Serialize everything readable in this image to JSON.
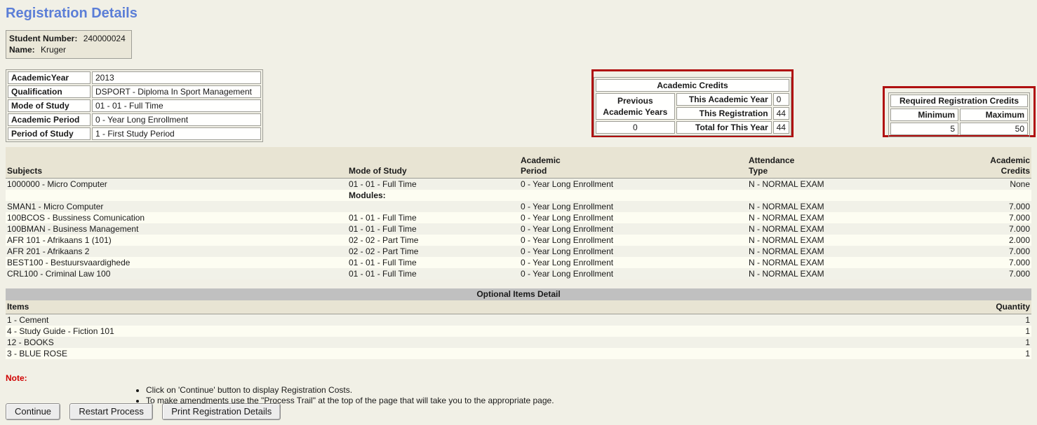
{
  "page": {
    "title": "Registration Details"
  },
  "colors": {
    "accent_title_blue": "#5b7ed7",
    "highlight_border_red": "#b01010",
    "note_red": "#d00000",
    "header_beige": "#e8e4d3",
    "optional_bar_gray": "#c0c0c0"
  },
  "student": {
    "number_label": "Student Number:",
    "number_value": "240000024",
    "name_label": "Name:",
    "name_value": "Kruger"
  },
  "info": {
    "rows": [
      {
        "label": "AcademicYear",
        "value": "2013"
      },
      {
        "label": "Qualification",
        "value": "DSPORT - Diploma In Sport Management"
      },
      {
        "label": "Mode of Study",
        "value": "01 - 01 - Full Time"
      },
      {
        "label": "Academic Period",
        "value": "0 - Year Long Enrollment"
      },
      {
        "label": "Period of Study",
        "value": "1 - First Study Period"
      }
    ]
  },
  "academic_credits": {
    "title": "Academic Credits",
    "previous_label": "Previous Academic Years",
    "previous_value": "0",
    "this_year_label": "This Academic Year",
    "this_year_value": "0",
    "this_registration_label": "This Registration",
    "this_registration_value": "44",
    "total_label": "Total for This Year",
    "total_value": "44"
  },
  "required_credits": {
    "title": "Required Registration Credits",
    "min_label": "Minimum",
    "max_label": "Maximum",
    "min_value": "5",
    "max_value": "50"
  },
  "subjects": {
    "headers": [
      "Subjects",
      "Mode of Study",
      "Academic\nPeriod",
      "Attendance\nType",
      "Academic\nCredits"
    ],
    "rows": [
      {
        "subject": "1000000 - Micro Computer",
        "mode": "01 - 01 - Full Time",
        "period": "0 - Year Long Enrollment",
        "attendance": "N - NORMAL EXAM",
        "credits": "None",
        "modules_row": false
      },
      {
        "subject": "",
        "mode": "Modules:",
        "period": "",
        "attendance": "",
        "credits": "",
        "modules_row": true
      },
      {
        "subject": "SMAN1 - Micro Computer",
        "mode": "",
        "period": "0 - Year Long Enrollment",
        "attendance": "N - NORMAL EXAM",
        "credits": "7.000",
        "modules_row": false
      },
      {
        "subject": "100BCOS - Bussiness Comunication",
        "mode": "01 - 01 - Full Time",
        "period": "0 - Year Long Enrollment",
        "attendance": "N - NORMAL EXAM",
        "credits": "7.000",
        "modules_row": false
      },
      {
        "subject": "100BMAN - Business Management",
        "mode": "01 - 01 - Full Time",
        "period": "0 - Year Long Enrollment",
        "attendance": "N - NORMAL EXAM",
        "credits": "7.000",
        "modules_row": false
      },
      {
        "subject": "AFR 101 - Afrikaans 1 (101)",
        "mode": "02 - 02 - Part Time",
        "period": "0 - Year Long Enrollment",
        "attendance": "N - NORMAL EXAM",
        "credits": "2.000",
        "modules_row": false
      },
      {
        "subject": "AFR 201 - Afrikaans 2",
        "mode": "02 - 02 - Part Time",
        "period": "0 - Year Long Enrollment",
        "attendance": "N - NORMAL EXAM",
        "credits": "7.000",
        "modules_row": false
      },
      {
        "subject": "BEST100 - Bestuursvaardighede",
        "mode": "01 - 01 - Full Time",
        "period": "0 - Year Long Enrollment",
        "attendance": "N - NORMAL EXAM",
        "credits": "7.000",
        "modules_row": false
      },
      {
        "subject": "CRL100 - Criminal Law 100",
        "mode": "01 - 01 - Full Time",
        "period": "0 - Year Long Enrollment",
        "attendance": "N - NORMAL EXAM",
        "credits": "7.000",
        "modules_row": false
      }
    ]
  },
  "optional_items": {
    "bar_title": "Optional Items Detail",
    "headers": [
      "Items",
      "Quantity"
    ],
    "rows": [
      {
        "item": "1 - Cement",
        "quantity": "1"
      },
      {
        "item": "4 - Study Guide - Fiction 101",
        "quantity": "1"
      },
      {
        "item": "12 - BOOKS",
        "quantity": "1"
      },
      {
        "item": "3 - BLUE ROSE",
        "quantity": "1"
      }
    ]
  },
  "note": {
    "label": "Note:",
    "bullets": [
      "Click on 'Continue' button to display Registration Costs.",
      "To make amendments use the \"Process Trail\" at the top of the page that will take you to the appropriate page."
    ]
  },
  "buttons": {
    "continue_label": "Continue",
    "restart_label": "Restart Process",
    "print_label": "Print Registration Details"
  }
}
